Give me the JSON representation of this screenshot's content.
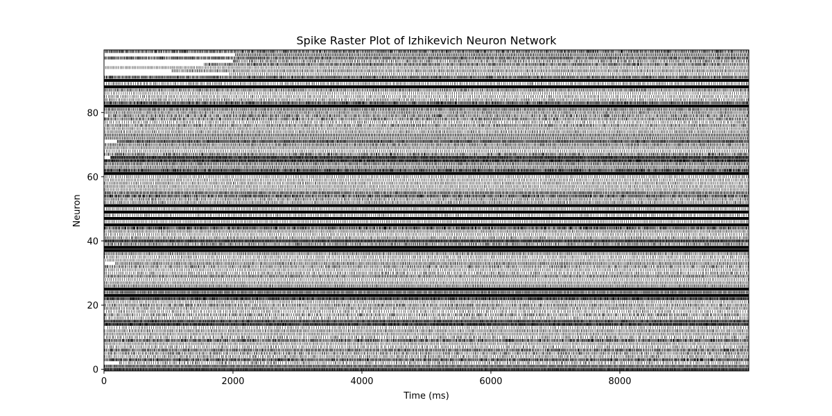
{
  "chart_data": {
    "type": "scatter",
    "subtype": "spike-raster",
    "title": "Spike Raster Plot of Izhikevich Neuron Network",
    "xlabel": "Time (ms)",
    "ylabel": "Neuron",
    "xlim": [
      0,
      10000
    ],
    "ylim": [
      -0.5,
      99.5
    ],
    "x_ticks": [
      0,
      2000,
      4000,
      6000,
      8000
    ],
    "y_ticks": [
      0,
      20,
      40,
      60,
      80
    ],
    "grid": false,
    "legend": "none",
    "marker": "vertical-line",
    "color": "#000000",
    "num_neurons": 100,
    "duration_ms": 10000,
    "solid_neurons": [
      23,
      25,
      37,
      38,
      45,
      47,
      49,
      51,
      61,
      82,
      88,
      90
    ]
  }
}
